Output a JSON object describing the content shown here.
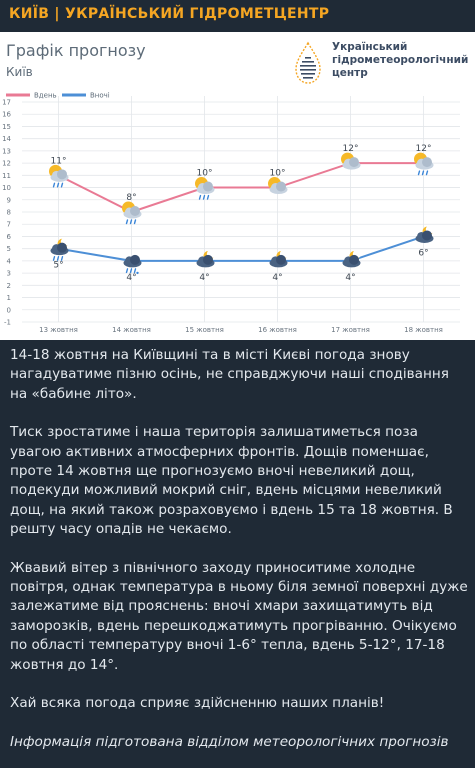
{
  "header": {
    "title": "КИЇВ | УКРАЇНСЬКИЙ ГІДРОМЕТЦЕНТР"
  },
  "colors": {
    "title": "#f5a623",
    "day_series": "#e97a94",
    "night_series": "#4d8fd6",
    "background": "#1f2a36",
    "chart_background": "#ffffff"
  },
  "logo": {
    "lines": [
      "Український",
      "гідрометеорологічний",
      "центр"
    ],
    "icon": "water-drop-logo-icon"
  },
  "chart_data": {
    "type": "line",
    "title": "Графік прогнозу",
    "subtitle": "Київ",
    "categories": [
      "13 жовтня",
      "14 жовтня",
      "15 жовтня",
      "16 жовтня",
      "17 жовтня",
      "18 жовтня"
    ],
    "series": [
      {
        "name": "Вдень",
        "color": "#e97a94",
        "values": [
          11,
          8,
          10,
          10,
          12,
          12
        ],
        "labels": [
          "11°",
          "8°",
          "10°",
          "10°",
          "12°",
          "12°"
        ],
        "icons": [
          "sun-cloud-rain-icon",
          "sun-cloud-rain-icon",
          "sun-cloud-rain-icon",
          "sun-cloud-icon",
          "sun-cloud-icon",
          "sun-cloud-rain-icon"
        ]
      },
      {
        "name": "Вночі",
        "color": "#4d8fd6",
        "values": [
          5,
          4,
          4,
          4,
          4,
          6
        ],
        "labels": [
          "5°",
          "4°",
          "4°",
          "4°",
          "4°",
          "6°"
        ],
        "icons": [
          "moon-cloud-rain-icon",
          "cloud-rain-snow-icon",
          "moon-cloud-icon",
          "moon-cloud-icon",
          "moon-cloud-icon",
          "moon-cloud-icon"
        ]
      }
    ],
    "y_ticks": [
      "-1",
      "0",
      "1",
      "2",
      "3",
      "4",
      "5",
      "6",
      "7",
      "8",
      "9",
      "10",
      "11",
      "12",
      "13",
      "14",
      "15",
      "16",
      "17"
    ],
    "ylim": [
      -1,
      17
    ],
    "grid": true,
    "legend_position": "top-left"
  },
  "article": {
    "p1": "14-18 жовтня на Київщині та в місті Києві погода знову нагадуватиме пізню осінь, не справджуючи наші сподівання на «бабине літо».",
    "p2": "Тиск зростатиме і наша територія залишатиметься поза увагою активних атмосферних фронтів. Дощів поменшає, проте 14 жовтня ще прогнозуємо вночі невеликий дощ, подекуди можливий  мокрий сніг, вдень місцями невеликий дощ, на який також розраховуємо і вдень 15 та 18 жовтня. В решту часу опадів не чекаємо.",
    "p3": "Жвавий вітер з північного заходу приноситиме холодне повітря, однак температура в ньому біля земної поверхні дуже залежатиме від прояснень: вночі хмари захищатимуть від заморозків, вдень перешкоджатимуть прогріванню. Очікуємо по області температуру вночі 1-6° тепла, вдень 5-12°, 17-18 жовтня до 14°.",
    "p4": "Хай всяка погода сприяє здійсненню наших планів!",
    "p5": "Інформація підготована відділом метеорологічних прогнозів"
  }
}
